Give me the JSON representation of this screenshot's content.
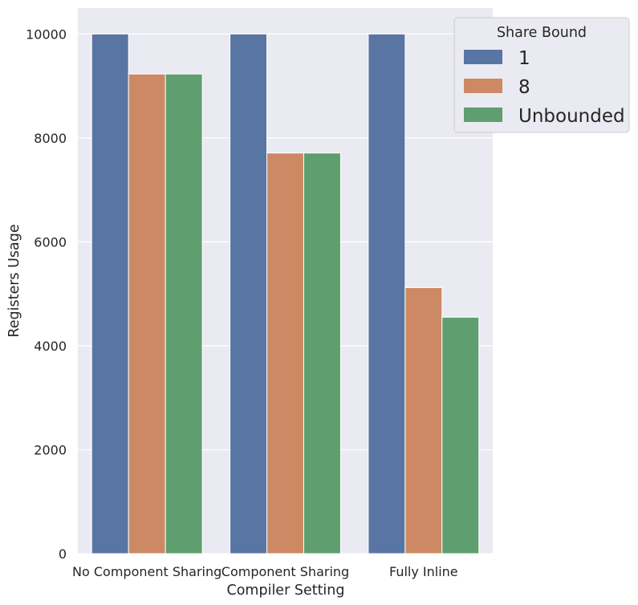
{
  "chart_data": {
    "type": "bar",
    "categories": [
      "No Component Sharing",
      "Component Sharing",
      "Fully Inline"
    ],
    "series": [
      {
        "name": "1",
        "values": [
          10000,
          10000,
          10000
        ],
        "color": "#5875a4"
      },
      {
        "name": "8",
        "values": [
          9230,
          7710,
          5120
        ],
        "color": "#cc8963"
      },
      {
        "name": "Unbounded",
        "values": [
          9230,
          7710,
          4550
        ],
        "color": "#5f9e6e"
      }
    ],
    "xlabel": "Compiler Setting",
    "ylabel": "Registers Usage",
    "ylim": [
      0,
      10500
    ],
    "yticks": [
      0,
      2000,
      4000,
      6000,
      8000,
      10000
    ],
    "legend_title": "Share Bound",
    "legend_position": "top-right",
    "grid": true,
    "background": "#eaeaf2"
  }
}
